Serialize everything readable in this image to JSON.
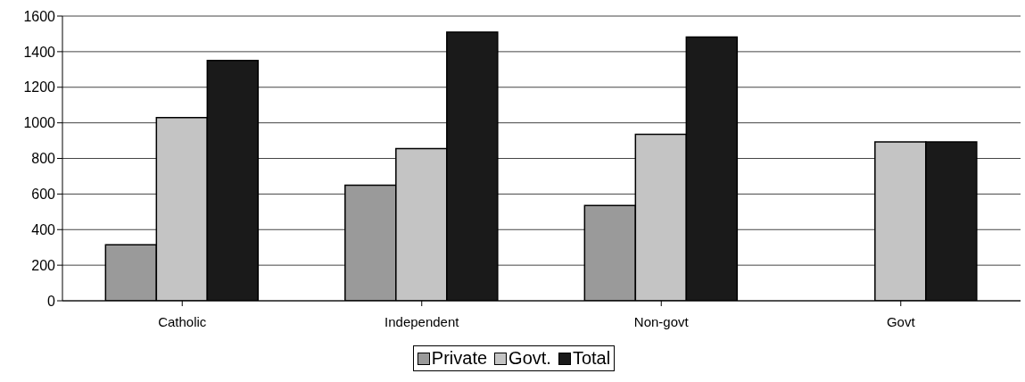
{
  "chart_data": {
    "type": "bar",
    "categories": [
      "Catholic",
      "Independent",
      "Non-govt",
      "Govt"
    ],
    "series": [
      {
        "name": "Private",
        "color": "#9a9a9a",
        "values": [
          315,
          650,
          535,
          null
        ]
      },
      {
        "name": "Govt.",
        "color": "#c4c4c4",
        "values": [
          1030,
          855,
          935,
          893
        ]
      },
      {
        "name": "Total",
        "color": "#1a1a1a",
        "values": [
          1350,
          1510,
          1482,
          893
        ]
      }
    ],
    "ylim": [
      0,
      1600
    ],
    "yticks": [
      0,
      200,
      400,
      600,
      800,
      1000,
      1200,
      1400,
      1600
    ],
    "grid": "y",
    "legend": "bottom"
  }
}
